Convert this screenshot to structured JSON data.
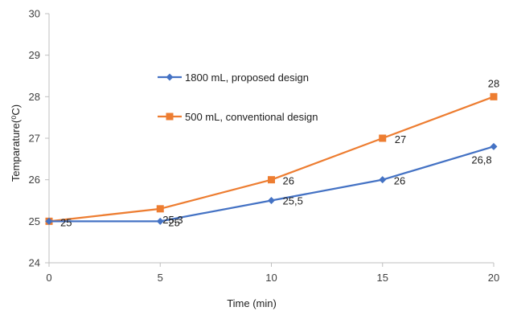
{
  "chart_data": {
    "type": "line",
    "xlabel": "Time (min)",
    "ylabel": "Temparature(⁰C)",
    "xlim": [
      0,
      20
    ],
    "ylim": [
      24,
      30
    ],
    "x": [
      0,
      5,
      10,
      15,
      20
    ],
    "x_ticks": [
      "0",
      "5",
      "10",
      "15",
      "20"
    ],
    "y_ticks": [
      "24",
      "25",
      "26",
      "27",
      "28",
      "29",
      "30"
    ],
    "grid": false,
    "legend_position": "inside-top-left",
    "series": [
      {
        "name": "1800 mL, proposed design",
        "marker": "diamond",
        "color": "#4472C4",
        "values": [
          25,
          25,
          25.5,
          26,
          26.8
        ],
        "labels": [
          "25",
          "25",
          "25,5",
          "26",
          "26,8"
        ]
      },
      {
        "name": "500 mL, conventional design",
        "marker": "square",
        "color": "#ED7D31",
        "values": [
          25,
          25.3,
          26,
          27,
          28
        ],
        "labels": [
          "",
          "25,3",
          "26",
          "27",
          "28"
        ]
      }
    ]
  }
}
